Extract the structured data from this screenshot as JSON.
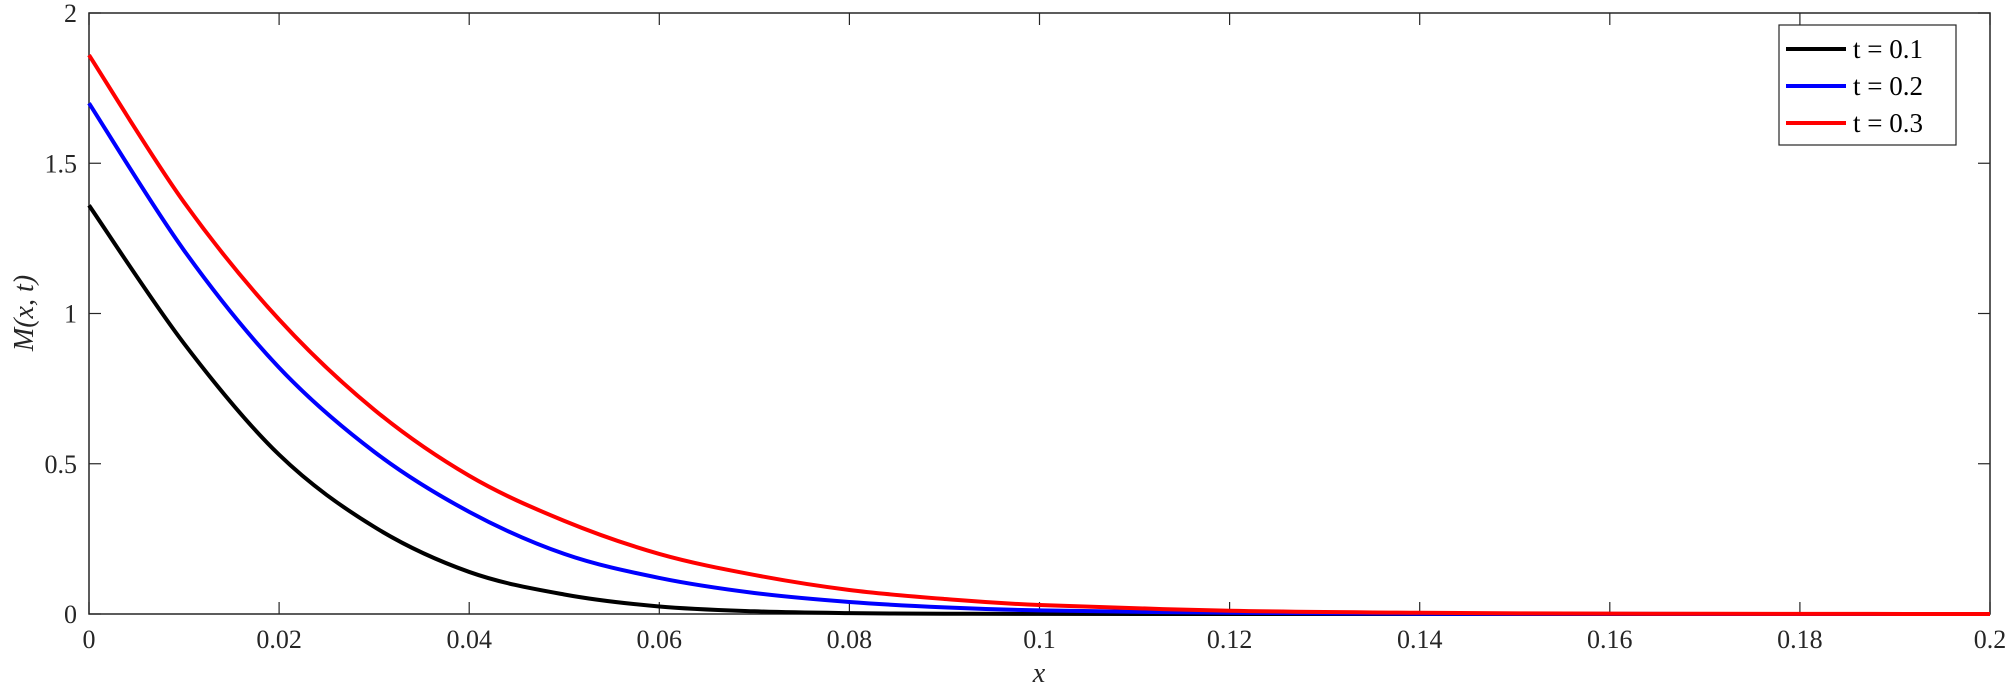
{
  "chart_data": {
    "type": "line",
    "xlabel": "x",
    "ylabel": "M(x, t)",
    "xlim": [
      0,
      0.2
    ],
    "ylim": [
      0,
      2
    ],
    "x_ticks": [
      0,
      0.02,
      0.04,
      0.06,
      0.08,
      0.1,
      0.12,
      0.14,
      0.16,
      0.18,
      0.2
    ],
    "x_tick_labels": [
      "0",
      "0.02",
      "0.04",
      "0.06",
      "0.08",
      "0.1",
      "0.12",
      "0.14",
      "0.16",
      "0.18",
      "0.2"
    ],
    "y_ticks": [
      0,
      0.5,
      1,
      1.5,
      2
    ],
    "y_tick_labels": [
      "0",
      "0.5",
      "1",
      "1.5",
      "2"
    ],
    "grid": false,
    "legend_position": "top-right",
    "x": [
      0,
      0.01,
      0.02,
      0.03,
      0.04,
      0.05,
      0.06,
      0.07,
      0.08,
      0.09,
      0.1,
      0.12,
      0.14,
      0.16,
      0.18,
      0.2
    ],
    "series": [
      {
        "name": "t = 0.1",
        "color": "#000000",
        "values": [
          1.36,
          0.9,
          0.53,
          0.29,
          0.14,
          0.065,
          0.025,
          0.009,
          0.003,
          0.001,
          0.0003,
          0.0,
          0.0,
          0.0,
          0.0,
          0.0
        ]
      },
      {
        "name": "t = 0.2",
        "color": "#0000ff",
        "values": [
          1.7,
          1.21,
          0.82,
          0.54,
          0.34,
          0.2,
          0.12,
          0.07,
          0.04,
          0.022,
          0.012,
          0.004,
          0.001,
          0.0003,
          0.0001,
          0.0
        ]
      },
      {
        "name": "t = 0.3",
        "color": "#ff0000",
        "values": [
          1.86,
          1.37,
          0.98,
          0.68,
          0.46,
          0.31,
          0.2,
          0.13,
          0.08,
          0.05,
          0.03,
          0.011,
          0.004,
          0.0013,
          0.0004,
          0.0001
        ]
      }
    ]
  }
}
